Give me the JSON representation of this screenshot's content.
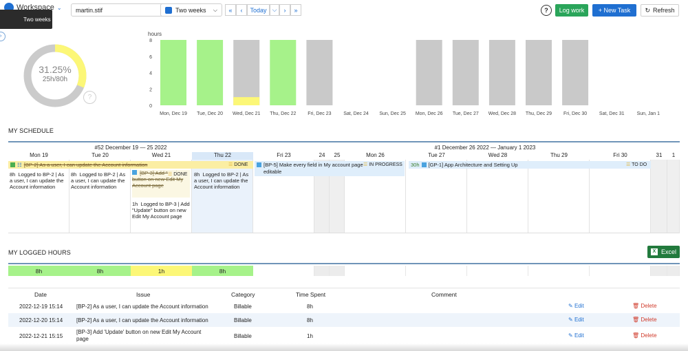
{
  "toolbar": {
    "workspace_label": "Workspace",
    "tooltip_text": "Two weeks",
    "user_select": "martin.stif",
    "period_select": "Two weeks",
    "today_label": "Today",
    "log_work_label": "Log work",
    "new_task_label": "+ New Task",
    "refresh_label": "Refresh"
  },
  "summary": {
    "percent": "31.25%",
    "ratio": "25h/80h",
    "help": "?",
    "progress_fraction": 0.3125
  },
  "chart_data": {
    "type": "bar",
    "ylabel": "hours",
    "ylim": [
      0,
      8
    ],
    "yticks": [
      0,
      2,
      4,
      6,
      8
    ],
    "categories": [
      "Mon, Dec 19",
      "Tue, Dec 20",
      "Wed, Dec 21",
      "Thu, Dec 22",
      "Fri, Dec 23",
      "Sat, Dec 24",
      "Sun, Dec 25",
      "Mon, Dec 26",
      "Tue, Dec 27",
      "Wed, Dec 28",
      "Thu, Dec 29",
      "Fri, Dec 30",
      "Sat, Dec 31",
      "Sun, Jan 1"
    ],
    "logged": [
      8,
      8,
      1,
      8,
      0,
      0,
      0,
      0,
      0,
      0,
      0,
      0,
      0,
      0
    ],
    "capacity": [
      8,
      8,
      8,
      8,
      8,
      0,
      0,
      8,
      8,
      8,
      8,
      8,
      0,
      0
    ],
    "colors": {
      "full": "#a6f28a",
      "partial": "#fcf777",
      "empty": "#c9c9c9"
    }
  },
  "schedule": {
    "title": "MY SCHEDULE",
    "week1_label": "#52 December 19 — 25 2022",
    "week2_label": "#1 December 26 2022 — January 1 2023",
    "days": [
      "Mon 19",
      "Tue 20",
      "Wed 21",
      "Thu 22",
      "Fri 23",
      "24",
      "25",
      "Mon 26",
      "Tue 27",
      "Wed 28",
      "Thu 29",
      "Fri 30",
      "31",
      "1"
    ],
    "tasks": [
      {
        "hours": "",
        "title": "[BP-2] As a user, I can update the Account information",
        "status": "DONE"
      },
      {
        "hours": "",
        "title": "[BP-5] Make every field in My account page editable",
        "status": "IN PROGRESS"
      },
      {
        "hours": "30h",
        "title": "[GP-1] App Architecture and Setting Up",
        "status": "TO DO"
      },
      {
        "hours": "",
        "title": "[BP-3] Add \"Update\" button on new Edit My Account page",
        "status": "DONE"
      }
    ],
    "entries": [
      {
        "hours": "8h",
        "text": "Logged to BP-2 | As a user, I can update the Account information"
      },
      {
        "hours": "8h",
        "text": "Logged to BP-2 | As a user, I can update the Account information"
      },
      {
        "hours": "8h",
        "text": "Logged to BP-2 | As a user, I can update the Account information"
      },
      {
        "hours": "1h",
        "text": "Logged to BP-3 | Add \"Update\" button on new Edit My Account page"
      }
    ]
  },
  "logged": {
    "title": "MY LOGGED HOURS",
    "excel_label": "Excel",
    "cells": [
      "8h",
      "8h",
      "1h",
      "8h"
    ],
    "table": {
      "headers": [
        "Date",
        "Issue",
        "Category",
        "Time Spent",
        "Comment"
      ],
      "rows": [
        {
          "date": "2022-12-19 15:14",
          "issue": "[BP-2] As a user, I can update the Account information",
          "category": "Billable",
          "time": "8h"
        },
        {
          "date": "2022-12-20 15:14",
          "issue": "[BP-2] As a user, I can update the Account information",
          "category": "Billable",
          "time": "8h"
        },
        {
          "date": "2022-12-21 15:15",
          "issue": "[BP-3] Add 'Update' button on new Edit My Account page",
          "category": "Billable",
          "time": "1h"
        }
      ],
      "edit_label": "Edit",
      "delete_label": "Delete"
    }
  }
}
